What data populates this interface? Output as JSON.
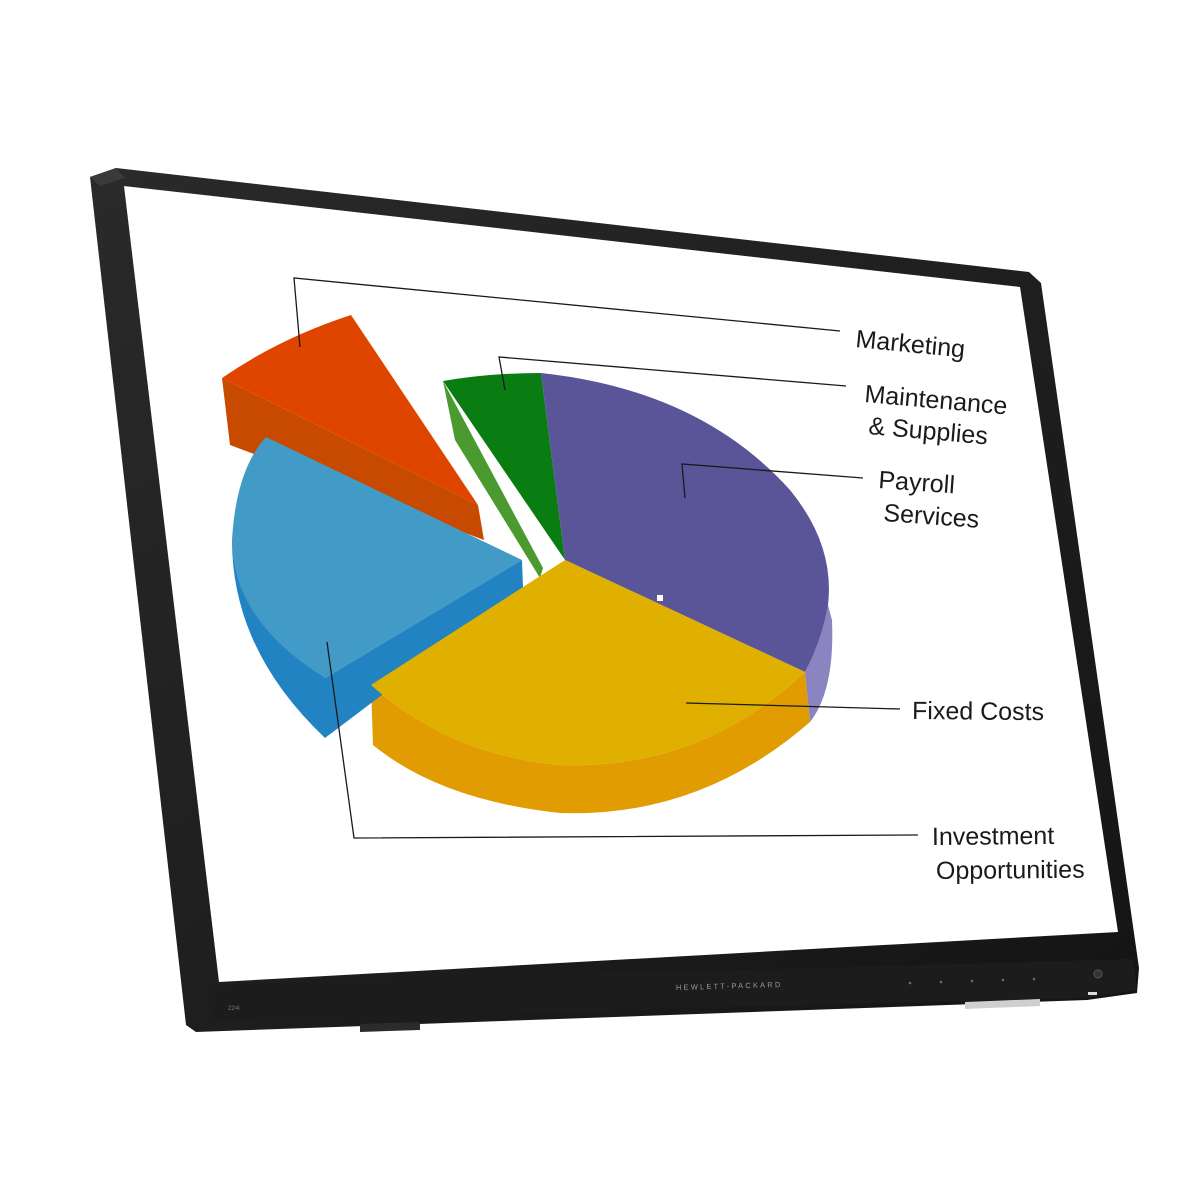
{
  "device": {
    "brand": "HEWLETT-PACKARD",
    "model": "Z24i",
    "button_count": 6
  },
  "chart_data": {
    "type": "pie",
    "style": "3d-exploded",
    "slices": [
      {
        "label": "Marketing",
        "color": "#e04500",
        "exploded": true
      },
      {
        "label": "Maintenance & Supplies",
        "color": "#0a7d12",
        "exploded": true
      },
      {
        "label": "Payroll Services",
        "color": "#5a5499"
      },
      {
        "label": "Fixed Costs",
        "color": "#e0b000"
      },
      {
        "label": "Investment Opportunities",
        "color": "#429bc6",
        "exploded": true
      }
    ],
    "labels": {
      "marketing": "Marketing",
      "maintenance_line1": "Maintenance",
      "maintenance_line2": "& Supplies",
      "payroll_line1": "Payroll",
      "payroll_line2": "Services",
      "fixed_costs": "Fixed Costs",
      "investment_line1": "Investment",
      "investment_line2": "Opportunities"
    }
  }
}
